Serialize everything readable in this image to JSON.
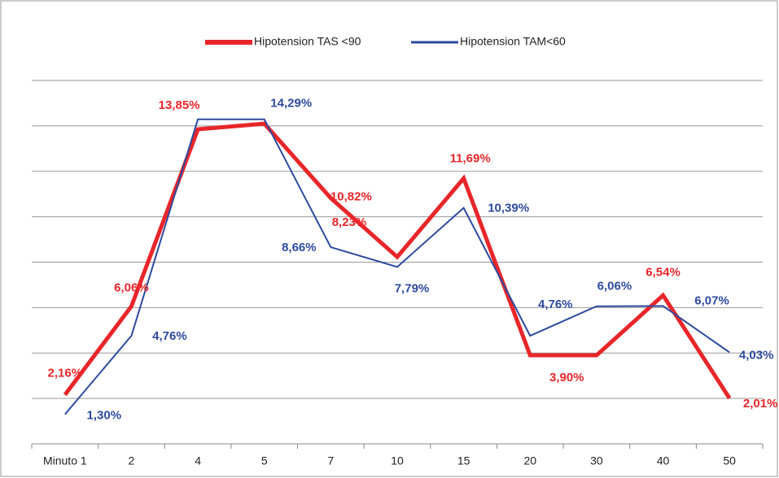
{
  "chart_data": {
    "type": "line",
    "categories": [
      "Minuto 1",
      "2",
      "4",
      "5",
      "7",
      "10",
      "15",
      "20",
      "30",
      "40",
      "50"
    ],
    "series": [
      {
        "name": "Hipotension TAS <90",
        "color": "#e8262a",
        "values": [
          2.16,
          6.06,
          13.85,
          14.1,
          10.82,
          8.23,
          11.69,
          3.9,
          3.9,
          6.54,
          2.01
        ],
        "value_labels": [
          "2,16%",
          "6,06%",
          "13,85%",
          null,
          "10,82%",
          "8,23%",
          "11,69%",
          "3,90%",
          null,
          "6,54%",
          "2,01%"
        ]
      },
      {
        "name": "Hipotension TAM<60",
        "color": "#2e4a9e",
        "values": [
          1.3,
          4.76,
          14.29,
          14.29,
          8.66,
          7.79,
          10.39,
          4.76,
          6.06,
          6.07,
          4.03
        ],
        "value_labels": [
          "1,30%",
          "4,76%",
          null,
          "14,29%",
          "8,66%",
          "7,79%",
          "10,39%",
          "4,76%",
          "6,06%",
          "6,07%",
          "4,03%"
        ]
      }
    ],
    "ylim": [
      0,
      16
    ],
    "yticks": [
      0,
      2,
      4,
      6,
      8,
      10,
      12,
      14,
      16
    ],
    "grid": true
  }
}
